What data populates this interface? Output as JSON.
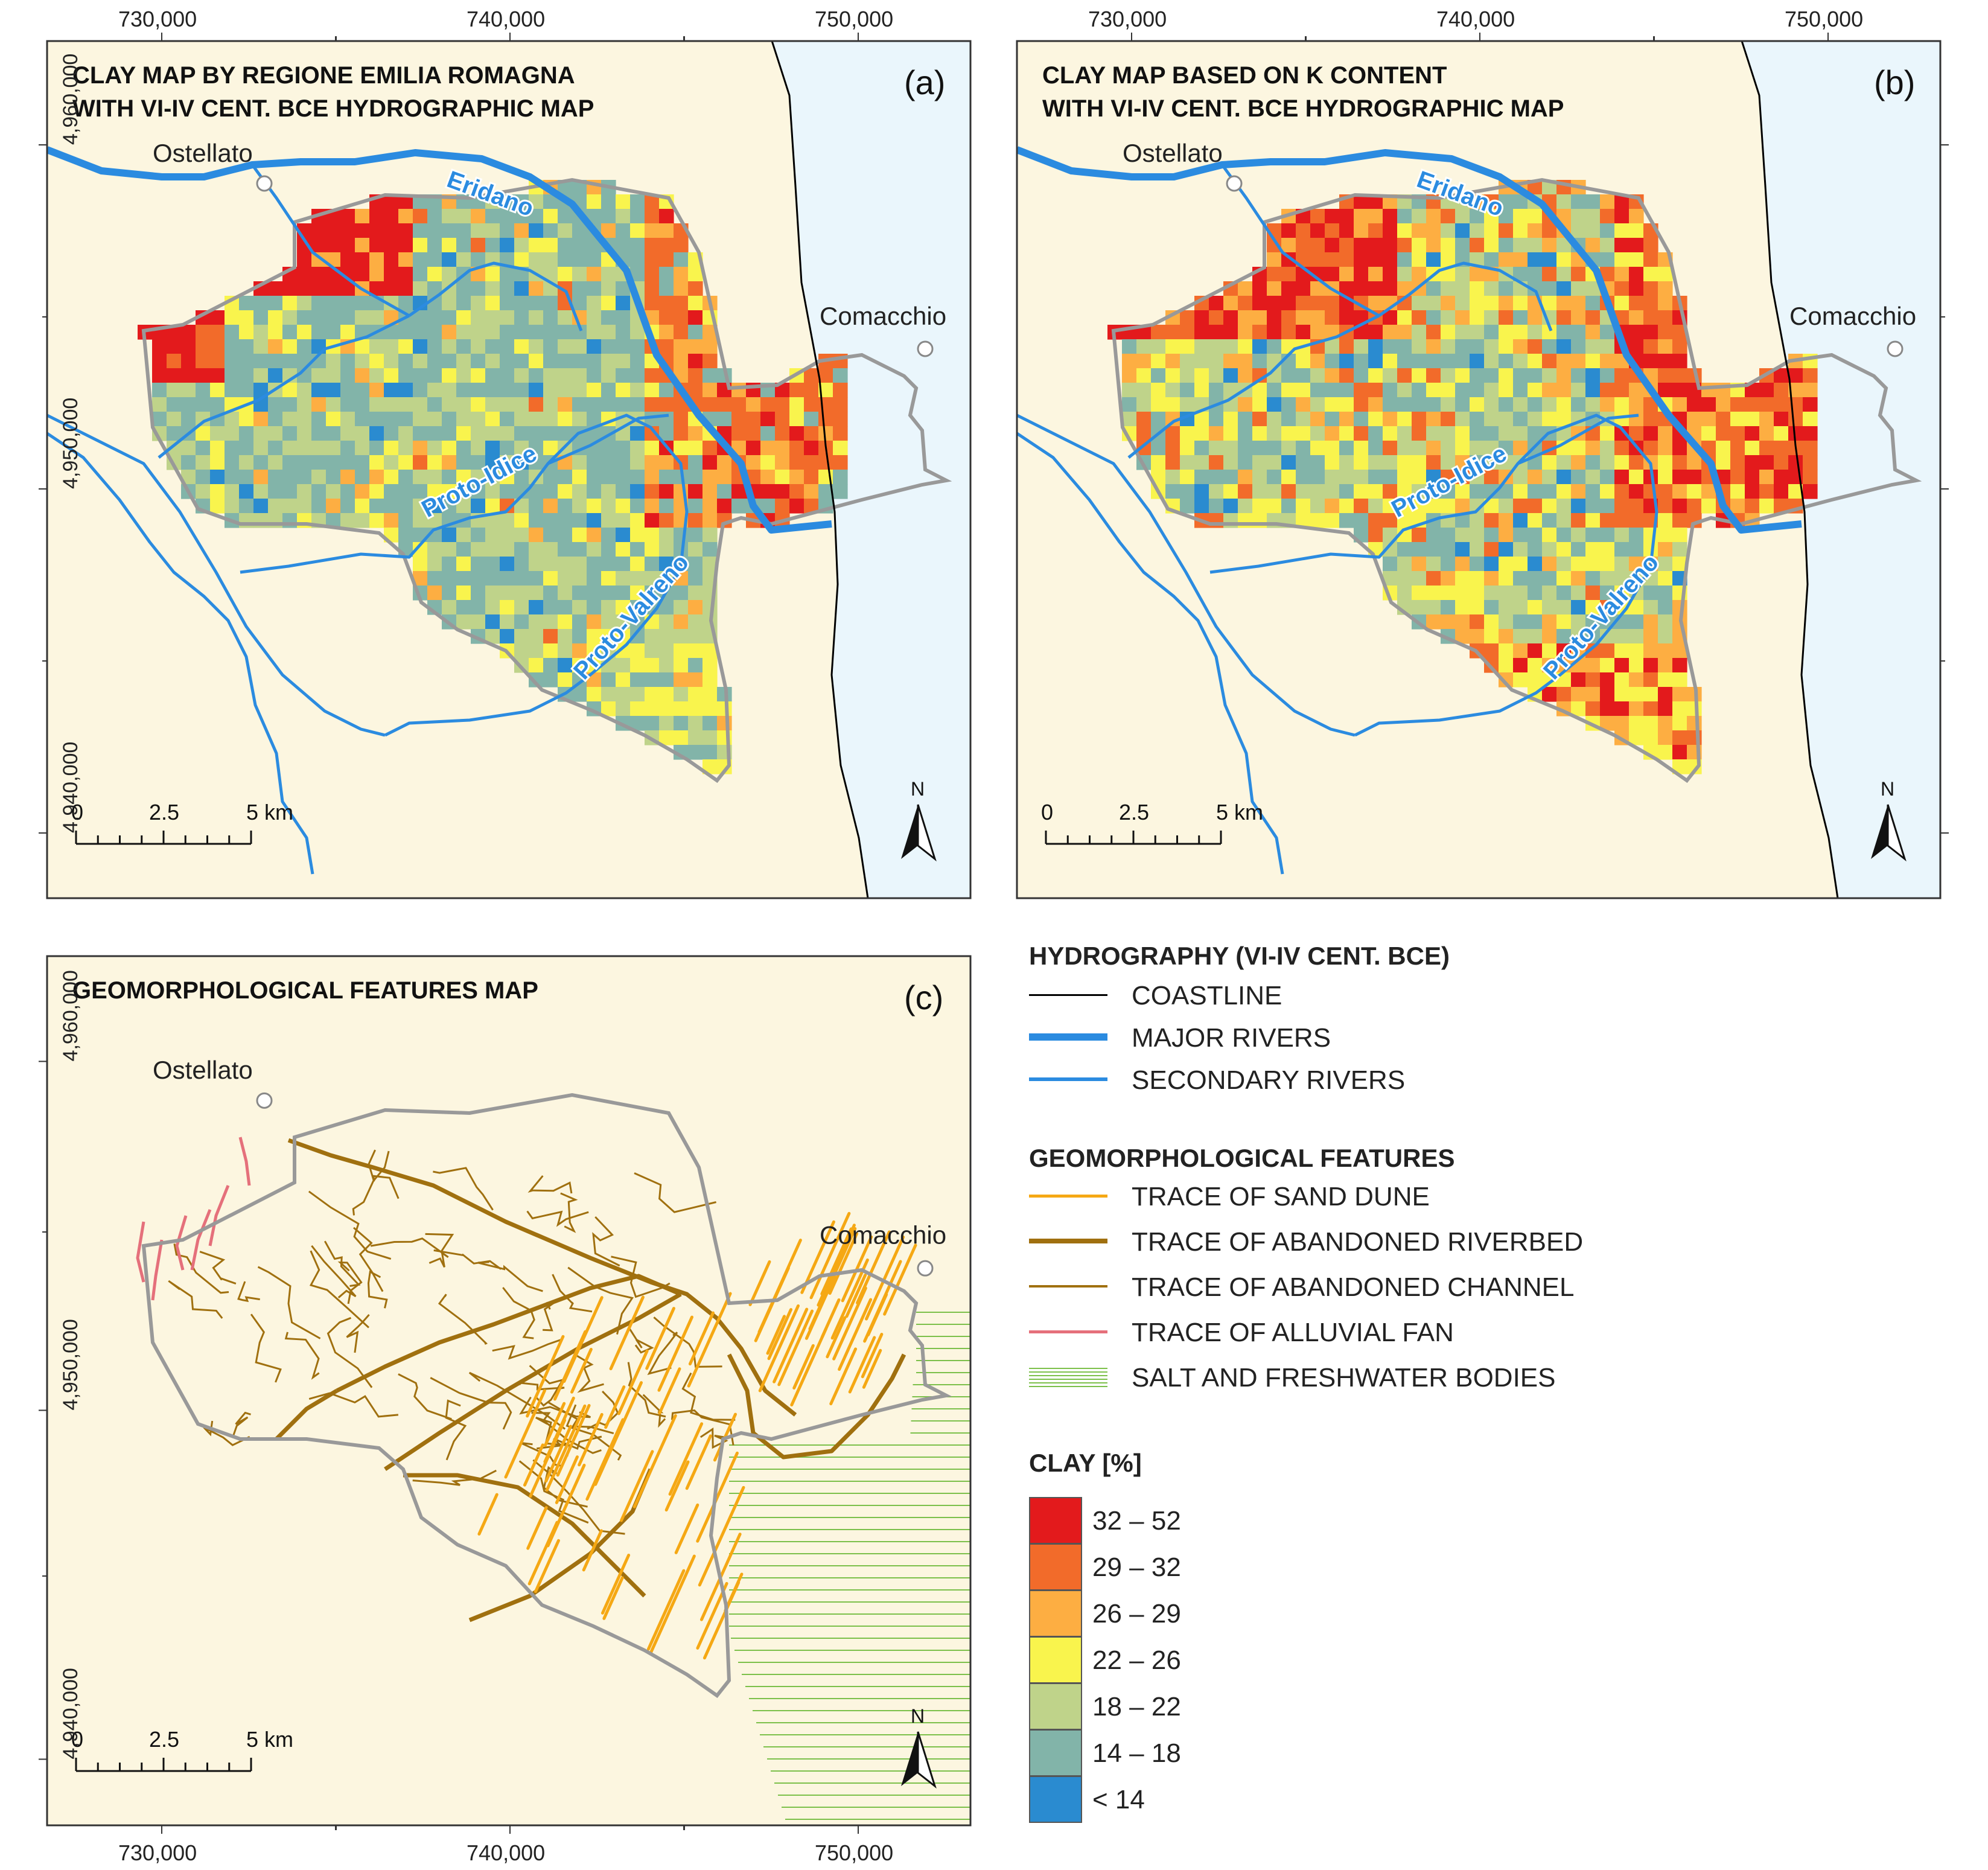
{
  "panels": [
    {
      "id": "a",
      "tag": "(a)",
      "title_line1": "CLAY MAP BY REGIONE EMILIA ROMAGNA",
      "title_line2": "WITH VI-IV CENT. BCE HYDROGRAPHIC MAP",
      "variant": "regione"
    },
    {
      "id": "b",
      "tag": "(b)",
      "title_line1": "CLAY MAP BASED ON K CONTENT",
      "title_line2": "WITH VI-IV CENT. BCE HYDROGRAPHIC MAP",
      "variant": "kcontent"
    },
    {
      "id": "c",
      "tag": "(c)",
      "title_line1": "GEOMORPHOLOGICAL FEATURES MAP",
      "title_line2": "",
      "variant": "geomorph"
    }
  ],
  "axes": {
    "x_ticks": [
      "730,000",
      "740,000",
      "750,000"
    ],
    "y_ticks": [
      "4,960,000",
      "4,950,000",
      "4,940,000"
    ]
  },
  "places": {
    "ostellato": "Ostellato",
    "comacchio": "Comacchio"
  },
  "rivers": {
    "eridano": "Eridano",
    "proto_idice": "Proto-Idice",
    "proto_valreno": "Proto-Valreno"
  },
  "scalebar": {
    "ticks": [
      "0",
      "2.5",
      "5 km"
    ]
  },
  "north_label": "N",
  "legend": {
    "hydro_title": "HYDROGRAPHY (VI-IV CENT. BCE)",
    "hydro_items": [
      {
        "label": "COASTLINE",
        "color": "#000000",
        "width": 3
      },
      {
        "label": "MAJOR RIVERS",
        "color": "#2b8be0",
        "width": 12
      },
      {
        "label": "SECONDARY RIVERS",
        "color": "#2b8be0",
        "width": 6
      }
    ],
    "geo_title": "GEOMORPHOLOGICAL FEATURES",
    "geo_items": [
      {
        "label": "TRACE OF SAND DUNE",
        "color": "#f5a814",
        "width": 5
      },
      {
        "label": "TRACE OF ABANDONED RIVERBED",
        "color": "#a0700f",
        "width": 8
      },
      {
        "label": "TRACE OF ABANDONED CHANNEL",
        "color": "#a0700f",
        "width": 4
      },
      {
        "label": "TRACE OF ALLUVIAL FAN",
        "color": "#e5707b",
        "width": 5
      },
      {
        "label": "SALT AND FRESHWATER BODIES",
        "color": "#7cc04a",
        "width": 2
      }
    ],
    "clay_title": "CLAY [%]",
    "clay_classes": [
      {
        "label": "32 – 52",
        "color": "#e31a1c"
      },
      {
        "label": "29 – 32",
        "color": "#f26b2a"
      },
      {
        "label": "26 – 29",
        "color": "#fdae42"
      },
      {
        "label": "22 – 26",
        "color": "#f9f44d"
      },
      {
        "label": "18 – 22",
        "color": "#bfd38a"
      },
      {
        "label": "14 – 18",
        "color": "#82b4a9"
      },
      {
        "label": "< 14",
        "color": "#2a8bd0"
      }
    ]
  },
  "colors": {
    "land": "#fcf6e0",
    "sea": "#eaf6fc",
    "study_outline": "#999999"
  }
}
